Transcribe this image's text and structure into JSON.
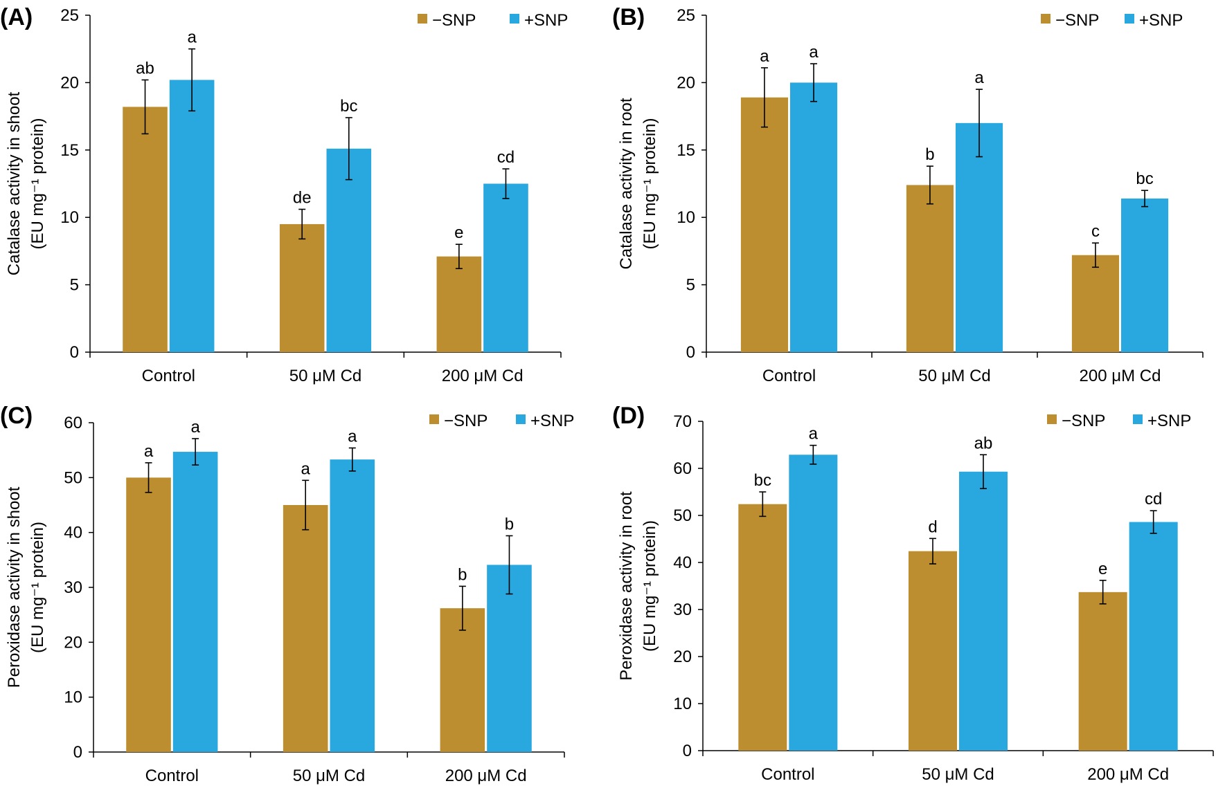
{
  "colors": {
    "minus_snp": "#BC8E30",
    "plus_snp": "#29A8E0",
    "axis": "#000000",
    "error": "#000000"
  },
  "chart_data": [
    {
      "panel_label": "(A)",
      "type": "bar",
      "ylabel_line1": "Catalase activity in shoot",
      "ylabel_line2": "(EU mg⁻¹ protein)",
      "ylim": [
        0,
        25
      ],
      "yticks": [
        "0",
        "5",
        "10",
        "15",
        "20",
        "25"
      ],
      "categories": [
        "Control",
        "50 μM Cd",
        "200 μM Cd"
      ],
      "legend": [
        "−SNP",
        "+SNP"
      ],
      "series": [
        {
          "name": "−SNP",
          "values": [
            18.2,
            9.5,
            7.1
          ],
          "errors": [
            2.0,
            1.1,
            0.9
          ],
          "letters": [
            "ab",
            "de",
            "e"
          ]
        },
        {
          "name": "+SNP",
          "values": [
            20.2,
            15.1,
            12.5
          ],
          "errors": [
            2.3,
            2.3,
            1.1
          ],
          "letters": [
            "a",
            "bc",
            "cd"
          ]
        }
      ]
    },
    {
      "panel_label": "(B)",
      "type": "bar",
      "ylabel_line1": "Catalase activity in root",
      "ylabel_line2": "(EU mg⁻¹ protein)",
      "ylim": [
        0,
        25
      ],
      "yticks": [
        "0",
        "5",
        "10",
        "15",
        "20",
        "25"
      ],
      "categories": [
        "Control",
        "50 μM Cd",
        "200 μM Cd"
      ],
      "legend": [
        "−SNP",
        "+SNP"
      ],
      "series": [
        {
          "name": "−SNP",
          "values": [
            18.9,
            12.4,
            7.2
          ],
          "errors": [
            2.2,
            1.4,
            0.9
          ],
          "letters": [
            "a",
            "b",
            "c"
          ]
        },
        {
          "name": "+SNP",
          "values": [
            20.0,
            17.0,
            11.4
          ],
          "errors": [
            1.4,
            2.5,
            0.6
          ],
          "letters": [
            "a",
            "a",
            "bc"
          ]
        }
      ]
    },
    {
      "panel_label": "(C)",
      "type": "bar",
      "ylabel_line1": "Peroxidase activity in shoot",
      "ylabel_line2": "(EU mg⁻¹ protein)",
      "ylim": [
        0,
        60
      ],
      "yticks": [
        "0",
        "10",
        "20",
        "30",
        "40",
        "50",
        "60"
      ],
      "categories": [
        "Control",
        "50 μM Cd",
        "200 μM Cd"
      ],
      "legend": [
        "−SNP",
        "+SNP"
      ],
      "series": [
        {
          "name": "−SNP",
          "values": [
            50.0,
            45.0,
            26.2
          ],
          "errors": [
            2.7,
            4.5,
            4.0
          ],
          "letters": [
            "a",
            "a",
            "b"
          ]
        },
        {
          "name": "+SNP",
          "values": [
            54.7,
            53.3,
            34.1
          ],
          "errors": [
            2.4,
            2.1,
            5.3
          ],
          "letters": [
            "a",
            "a",
            "b"
          ]
        }
      ]
    },
    {
      "panel_label": "(D)",
      "type": "bar",
      "ylabel_line1": "Peroxidase activity in root",
      "ylabel_line2": "(EU mg⁻¹ protein)",
      "ylim": [
        0,
        70
      ],
      "yticks": [
        "0",
        "10",
        "20",
        "30",
        "40",
        "50",
        "60",
        "70"
      ],
      "categories": [
        "Control",
        "50 μM Cd",
        "200 μM Cd"
      ],
      "legend": [
        "−SNP",
        "+SNP"
      ],
      "series": [
        {
          "name": "−SNP",
          "values": [
            52.4,
            42.4,
            33.7
          ],
          "errors": [
            2.6,
            2.7,
            2.5
          ],
          "letters": [
            "bc",
            "d",
            "e"
          ]
        },
        {
          "name": "+SNP",
          "values": [
            62.9,
            59.3,
            48.6
          ],
          "errors": [
            2.0,
            3.6,
            2.4
          ],
          "letters": [
            "a",
            "ab",
            "cd"
          ]
        }
      ]
    }
  ]
}
